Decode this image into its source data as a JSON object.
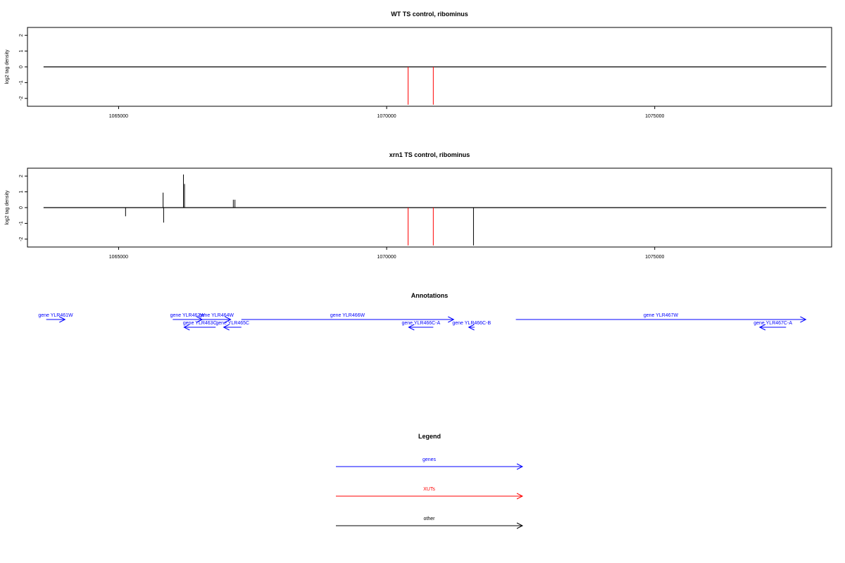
{
  "chart_data": [
    {
      "type": "line",
      "title": "WT TS control, ribominus",
      "ylabel": "log2 tag density",
      "xlim": [
        1063300,
        1078300
      ],
      "ylim": [
        -2.5,
        2.5
      ],
      "x_ticks": [
        1065000,
        1070000,
        1075000
      ],
      "x_tick_labels": [
        "1065000",
        "1070000",
        "1075000"
      ],
      "y_ticks": [
        -2,
        -1,
        0,
        1,
        2
      ],
      "y_tick_labels": [
        "-2",
        "-1",
        "0",
        "1",
        "2"
      ],
      "baseline": {
        "x": [
          1063600,
          1078200
        ],
        "y": 0,
        "color": "#000000"
      },
      "spikes": [
        {
          "x": 1070400,
          "y": -2.4,
          "color": "#ff0000"
        },
        {
          "x": 1070870,
          "y": -2.4,
          "color": "#ff0000"
        }
      ]
    },
    {
      "type": "line",
      "title": "xrn1 TS control, ribominus",
      "ylabel": "log2 tag density",
      "xlim": [
        1063300,
        1078300
      ],
      "ylim": [
        -2.5,
        2.5
      ],
      "x_ticks": [
        1065000,
        1070000,
        1075000
      ],
      "x_tick_labels": [
        "1065000",
        "1070000",
        "1075000"
      ],
      "y_ticks": [
        -2,
        -1,
        0,
        1,
        2
      ],
      "y_tick_labels": [
        "-2",
        "-1",
        "0",
        "1",
        "2"
      ],
      "baseline": {
        "x": [
          1063600,
          1078200
        ],
        "y": 0,
        "color": "#000000"
      },
      "spikes": [
        {
          "x": 1065130,
          "y": -0.55,
          "color": "#000000"
        },
        {
          "x": 1065830,
          "y": 0.95,
          "color": "#000000"
        },
        {
          "x": 1065840,
          "y": -0.95,
          "color": "#000000"
        },
        {
          "x": 1066210,
          "y": 2.1,
          "color": "#000000"
        },
        {
          "x": 1066230,
          "y": 1.5,
          "color": "#000000"
        },
        {
          "x": 1067140,
          "y": 0.5,
          "color": "#000000"
        },
        {
          "x": 1067170,
          "y": 0.5,
          "color": "#000000"
        },
        {
          "x": 1070400,
          "y": -2.4,
          "color": "#ff0000"
        },
        {
          "x": 1070870,
          "y": -2.4,
          "color": "#ff0000"
        },
        {
          "x": 1071620,
          "y": -2.4,
          "color": "#000000"
        }
      ]
    }
  ],
  "annotations": {
    "title": "Annotations",
    "genes": [
      {
        "label": "gene YLR461W",
        "start": 1063650,
        "end": 1064000,
        "strand": "+",
        "row": 0
      },
      {
        "label": "gene YLR462W",
        "start": 1066010,
        "end": 1066560,
        "strand": "+",
        "row": 0
      },
      {
        "label": "gene YLR463C",
        "start": 1066220,
        "end": 1066810,
        "strand": "-",
        "row": 1
      },
      {
        "label": "gene YLR464W",
        "start": 1066560,
        "end": 1067090,
        "strand": "+",
        "row": 0
      },
      {
        "label": "gene YLR465C",
        "start": 1066960,
        "end": 1067290,
        "strand": "-",
        "row": 1
      },
      {
        "label": "gene YLR466W",
        "start": 1067290,
        "end": 1071250,
        "strand": "+",
        "row": 0
      },
      {
        "label": "gene YLR466C-A",
        "start": 1070410,
        "end": 1070870,
        "strand": "-",
        "row": 1
      },
      {
        "label": "gene YLR466C-B",
        "start": 1071530,
        "end": 1071640,
        "strand": "-",
        "row": 1
      },
      {
        "label": "gene YLR467W",
        "start": 1072410,
        "end": 1077820,
        "strand": "+",
        "row": 0
      },
      {
        "label": "gene YLR467C-A",
        "start": 1076960,
        "end": 1077450,
        "strand": "-",
        "row": 1
      }
    ]
  },
  "legend": {
    "title": "Legend",
    "items": [
      {
        "label": "genes",
        "color": "#0000ff"
      },
      {
        "label": "XUTs",
        "color": "#ff0000"
      },
      {
        "label": "other",
        "color": "#000000"
      }
    ]
  }
}
